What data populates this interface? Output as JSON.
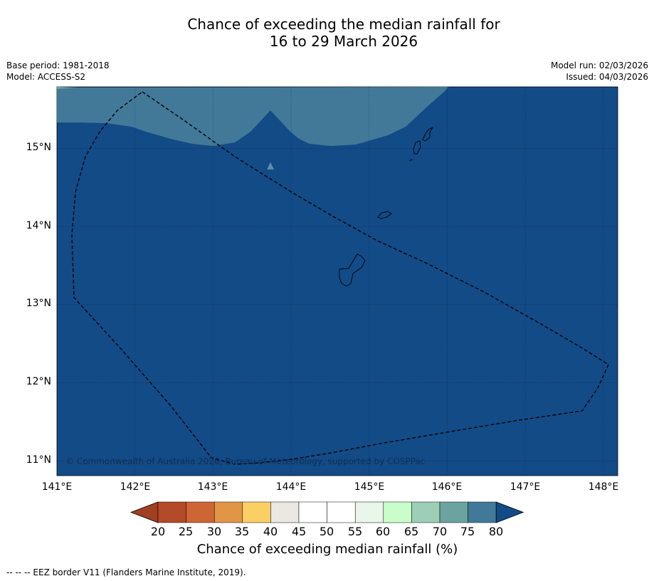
{
  "title": {
    "line1": "Chance of exceeding the median rainfall for",
    "line2": "16 to 29 March 2026"
  },
  "meta_left": {
    "base_period": "Base period: 1981-2018",
    "model": "Model: ACCESS-S2"
  },
  "meta_right": {
    "model_run": "Model run: 02/03/2026",
    "issued": "Issued: 04/03/2026"
  },
  "map": {
    "lon_ticks": [
      "141°E",
      "142°E",
      "143°E",
      "144°E",
      "145°E",
      "146°E",
      "147°E",
      "148°E"
    ],
    "lat_ticks": [
      "15°N",
      "14°N",
      "13°N",
      "12°N",
      "11°N"
    ],
    "copyright": "© Commonwealth of Australia 2026, Bureau of Meteorology, supported by COSPPac",
    "region_colors": {
      "main": "#134b87",
      "upper": "#427998",
      "land_outline": "#000000",
      "eez_border": "#000000"
    }
  },
  "colorbar": {
    "labels": [
      "20",
      "25",
      "30",
      "35",
      "40",
      "45",
      "50",
      "55",
      "60",
      "65",
      "70",
      "75",
      "80"
    ],
    "colors": [
      "#b34a29",
      "#cd6534",
      "#e19546",
      "#fccf65",
      "#ebe7e2",
      "#ffffff",
      "#ffffff",
      "#e9f6e9",
      "#c9fdc9",
      "#9dcfb8",
      "#6aa3a0",
      "#427998"
    ],
    "under_color": "#a03f22",
    "over_color": "#134b87",
    "title": "Chance of exceeding median rainfall (%)"
  },
  "footnote": "--  --  -- EEZ border V11 (Flanders Marine Institute, 2019)."
}
